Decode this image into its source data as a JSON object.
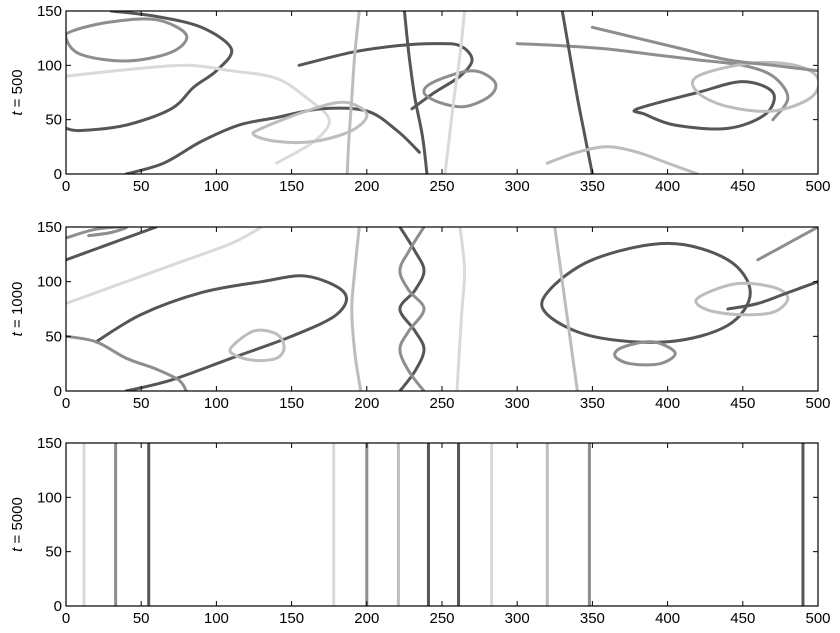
{
  "chart_data": [
    {
      "type": "line",
      "ylabel_var": "t",
      "ylabel_value": "500",
      "xlim": [
        0,
        500
      ],
      "ylim": [
        0,
        150
      ],
      "xticks": [
        "0",
        "50",
        "100",
        "150",
        "200",
        "250",
        "300",
        "350",
        "400",
        "450",
        "500"
      ],
      "yticks": [
        "0",
        "50",
        "100",
        "150"
      ],
      "grid": false,
      "colors": [
        "#565656",
        "#8e8e8e",
        "#bdbdbd",
        "#dadada"
      ],
      "series": [
        {
          "color": 0,
          "closed": false,
          "x": [
            30,
            60,
            90,
            110,
            100,
            85,
            70,
            40,
            10,
            0
          ],
          "y": [
            150,
            145,
            135,
            115,
            95,
            80,
            60,
            45,
            40,
            42
          ]
        },
        {
          "color": 1,
          "closed": true,
          "x": [
            5,
            30,
            60,
            80,
            70,
            40,
            10,
            0
          ],
          "y": [
            132,
            140,
            142,
            128,
            112,
            104,
            110,
            125
          ]
        },
        {
          "color": 3,
          "closed": false,
          "x": [
            0,
            40,
            80,
            110,
            140,
            160,
            175,
            165,
            140
          ],
          "y": [
            90,
            96,
            100,
            95,
            88,
            70,
            50,
            30,
            10
          ]
        },
        {
          "color": 0,
          "closed": false,
          "x": [
            40,
            65,
            90,
            115,
            140,
            170,
            200,
            220,
            235
          ],
          "y": [
            0,
            10,
            30,
            45,
            52,
            60,
            58,
            40,
            20
          ]
        },
        {
          "color": 2,
          "closed": true,
          "x": [
            130,
            160,
            185,
            200,
            190,
            165,
            140,
            125
          ],
          "y": [
            42,
            58,
            66,
            55,
            40,
            30,
            30,
            36
          ]
        },
        {
          "color": 0,
          "closed": false,
          "x": [
            155,
            190,
            220,
            245,
            262,
            270,
            262,
            245,
            230
          ],
          "y": [
            100,
            112,
            118,
            120,
            118,
            105,
            90,
            75,
            60
          ]
        },
        {
          "color": 1,
          "closed": true,
          "x": [
            245,
            270,
            285,
            282,
            265,
            248,
            238
          ],
          "y": [
            85,
            95,
            85,
            72,
            62,
            66,
            75
          ]
        },
        {
          "color": 2,
          "closed": false,
          "x": [
            195,
            192,
            190,
            188,
            187
          ],
          "y": [
            150,
            110,
            70,
            30,
            0
          ]
        },
        {
          "color": 3,
          "closed": false,
          "x": [
            265,
            262,
            258,
            255,
            252
          ],
          "y": [
            150,
            110,
            70,
            35,
            0
          ]
        },
        {
          "color": 0,
          "closed": false,
          "x": [
            225,
            228,
            232,
            237,
            240
          ],
          "y": [
            150,
            110,
            70,
            35,
            0
          ]
        },
        {
          "color": 1,
          "closed": false,
          "x": [
            300,
            330,
            360,
            390,
            420,
            450,
            470,
            480,
            470
          ],
          "y": [
            120,
            118,
            115,
            110,
            105,
            100,
            90,
            70,
            50
          ]
        },
        {
          "color": 0,
          "closed": true,
          "x": [
            380,
            420,
            450,
            470,
            465,
            440,
            405,
            385
          ],
          "y": [
            60,
            75,
            85,
            75,
            55,
            42,
            45,
            55
          ]
        },
        {
          "color": 2,
          "closed": true,
          "x": [
            420,
            455,
            485,
            500,
            495,
            470,
            440,
            420
          ],
          "y": [
            90,
            102,
            100,
            88,
            70,
            58,
            62,
            75
          ]
        },
        {
          "color": 0,
          "closed": false,
          "x": [
            330,
            335,
            340,
            345,
            350
          ],
          "y": [
            150,
            110,
            70,
            35,
            0
          ]
        },
        {
          "color": 1,
          "closed": false,
          "x": [
            350,
            380,
            410,
            440,
            470,
            500
          ],
          "y": [
            135,
            125,
            115,
            105,
            100,
            95
          ]
        },
        {
          "color": 2,
          "closed": false,
          "x": [
            320,
            340,
            360,
            380,
            400,
            420
          ],
          "y": [
            10,
            20,
            25,
            20,
            10,
            0
          ]
        }
      ]
    },
    {
      "type": "line",
      "ylabel_var": "t",
      "ylabel_value": "1000",
      "xlim": [
        0,
        500
      ],
      "ylim": [
        0,
        150
      ],
      "xticks": [
        "0",
        "50",
        "100",
        "150",
        "200",
        "250",
        "300",
        "350",
        "400",
        "450",
        "500"
      ],
      "yticks": [
        "0",
        "50",
        "100",
        "150"
      ],
      "grid": false,
      "colors": [
        "#565656",
        "#8e8e8e",
        "#bdbdbd",
        "#dadada"
      ],
      "series": [
        {
          "color": 1,
          "closed": false,
          "x": [
            0,
            20,
            40,
            30,
            15
          ],
          "y": [
            140,
            148,
            150,
            145,
            142
          ]
        },
        {
          "color": 0,
          "closed": false,
          "x": [
            0,
            20,
            40,
            60
          ],
          "y": [
            120,
            130,
            140,
            150
          ]
        },
        {
          "color": 3,
          "closed": false,
          "x": [
            0,
            30,
            70,
            110,
            130
          ],
          "y": [
            80,
            95,
            115,
            135,
            150
          ]
        },
        {
          "color": 0,
          "closed": false,
          "x": [
            20,
            50,
            90,
            130,
            160,
            185,
            180,
            150,
            110,
            70,
            40
          ],
          "y": [
            45,
            70,
            90,
            100,
            105,
            90,
            70,
            50,
            30,
            10,
            0
          ]
        },
        {
          "color": 2,
          "closed": true,
          "x": [
            110,
            125,
            140,
            145,
            140,
            125,
            112
          ],
          "y": [
            40,
            55,
            52,
            40,
            30,
            28,
            33
          ]
        },
        {
          "color": 1,
          "closed": false,
          "x": [
            0,
            20,
            40,
            60,
            75,
            80
          ],
          "y": [
            50,
            45,
            30,
            20,
            10,
            0
          ]
        },
        {
          "color": 2,
          "closed": false,
          "x": [
            195,
            192,
            190,
            192,
            196
          ],
          "y": [
            150,
            110,
            75,
            35,
            0
          ]
        },
        {
          "color": 0,
          "closed": false,
          "x": [
            222,
            232,
            238,
            232,
            222,
            232,
            238,
            232,
            222
          ],
          "y": [
            150,
            128,
            110,
            92,
            75,
            55,
            38,
            18,
            0
          ]
        },
        {
          "color": 1,
          "closed": false,
          "x": [
            238,
            228,
            222,
            228,
            238,
            228,
            222,
            228,
            238
          ],
          "y": [
            150,
            128,
            110,
            92,
            75,
            55,
            38,
            18,
            0
          ]
        },
        {
          "color": 3,
          "closed": false,
          "x": [
            262,
            265,
            263,
            260
          ],
          "y": [
            150,
            110,
            70,
            0
          ]
        },
        {
          "color": 0,
          "closed": true,
          "x": [
            320,
            350,
            400,
            440,
            455,
            440,
            400,
            350,
            320
          ],
          "y": [
            90,
            120,
            135,
            120,
            90,
            60,
            45,
            50,
            70
          ]
        },
        {
          "color": 1,
          "closed": true,
          "x": [
            370,
            390,
            405,
            395,
            375,
            365
          ],
          "y": [
            40,
            45,
            35,
            25,
            25,
            32
          ]
        },
        {
          "color": 2,
          "closed": true,
          "x": [
            420,
            445,
            470,
            480,
            470,
            445,
            425
          ],
          "y": [
            85,
            98,
            95,
            85,
            72,
            70,
            75
          ]
        },
        {
          "color": 0,
          "closed": false,
          "x": [
            440,
            460,
            480,
            500
          ],
          "y": [
            75,
            80,
            90,
            100
          ]
        },
        {
          "color": 1,
          "closed": false,
          "x": [
            460,
            480,
            500
          ],
          "y": [
            120,
            135,
            150
          ]
        },
        {
          "color": 2,
          "closed": false,
          "x": [
            325,
            330,
            335,
            340
          ],
          "y": [
            150,
            100,
            50,
            0
          ]
        }
      ]
    },
    {
      "type": "line",
      "ylabel_var": "t",
      "ylabel_value": "5000",
      "xlim": [
        0,
        500
      ],
      "ylim": [
        0,
        150
      ],
      "xticks": [
        "0",
        "50",
        "100",
        "150",
        "200",
        "250",
        "300",
        "350",
        "400",
        "450",
        "500"
      ],
      "yticks": [
        "0",
        "50",
        "100",
        "150"
      ],
      "grid": false,
      "colors": [
        "#565656",
        "#8e8e8e",
        "#bdbdbd",
        "#dadada"
      ],
      "series": [
        {
          "color": 3,
          "closed": false,
          "x": [
            12,
            12
          ],
          "y": [
            0,
            150
          ]
        },
        {
          "color": 1,
          "closed": false,
          "x": [
            33,
            33
          ],
          "y": [
            0,
            150
          ]
        },
        {
          "color": 0,
          "closed": false,
          "x": [
            55,
            55
          ],
          "y": [
            0,
            150
          ]
        },
        {
          "color": 3,
          "closed": false,
          "x": [
            178,
            178
          ],
          "y": [
            0,
            150
          ]
        },
        {
          "color": 1,
          "closed": false,
          "x": [
            200,
            200
          ],
          "y": [
            0,
            150
          ]
        },
        {
          "color": 2,
          "closed": false,
          "x": [
            221,
            221
          ],
          "y": [
            0,
            150
          ]
        },
        {
          "color": 0,
          "closed": false,
          "x": [
            241,
            241
          ],
          "y": [
            0,
            150
          ]
        },
        {
          "color": 0,
          "closed": false,
          "x": [
            261,
            261
          ],
          "y": [
            0,
            150
          ]
        },
        {
          "color": 3,
          "closed": false,
          "x": [
            283,
            283
          ],
          "y": [
            0,
            150
          ]
        },
        {
          "color": 2,
          "closed": false,
          "x": [
            320,
            320
          ],
          "y": [
            0,
            150
          ]
        },
        {
          "color": 1,
          "closed": false,
          "x": [
            348,
            348
          ],
          "y": [
            0,
            150
          ]
        },
        {
          "color": 0,
          "closed": false,
          "x": [
            490,
            490
          ],
          "y": [
            0,
            150
          ]
        }
      ]
    }
  ]
}
